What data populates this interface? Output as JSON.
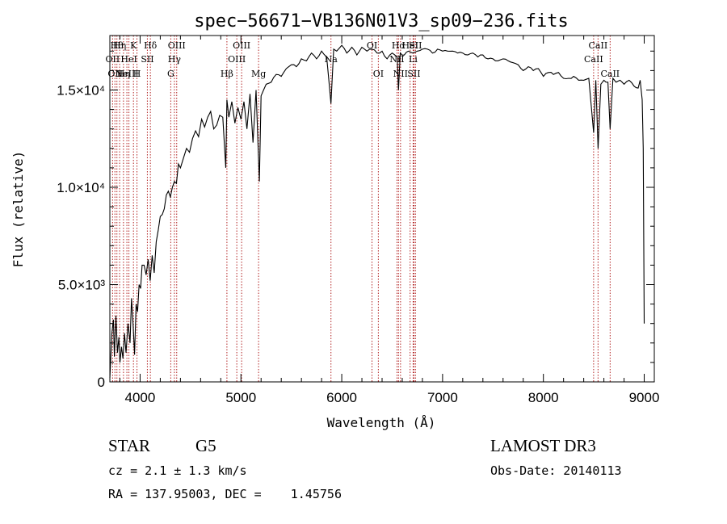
{
  "chart_data": {
    "type": "line",
    "title": "spec−56671−VB136N01V3_sp09−236.fits",
    "xlabel": "Wavelength (Å)",
    "ylabel": "Flux (relative)",
    "xlim": [
      3700,
      9100
    ],
    "ylim": [
      0,
      17800
    ],
    "x_ticks": [
      {
        "value": 4000,
        "label": "4000"
      },
      {
        "value": 5000,
        "label": "5000"
      },
      {
        "value": 6000,
        "label": "6000"
      },
      {
        "value": 7000,
        "label": "7000"
      },
      {
        "value": 8000,
        "label": "8000"
      },
      {
        "value": 9000,
        "label": "9000"
      }
    ],
    "y_ticks": [
      {
        "value": 0,
        "label": "0"
      },
      {
        "value": 5000,
        "label": "5.0×10³"
      },
      {
        "value": 10000,
        "label": "1.0×10⁴"
      },
      {
        "value": 15000,
        "label": "1.5×10⁴"
      }
    ],
    "series": [
      {
        "name": "spectrum",
        "color": "#000000",
        "x": [
          3700,
          3720,
          3735,
          3745,
          3760,
          3775,
          3790,
          3800,
          3815,
          3830,
          3845,
          3860,
          3880,
          3900,
          3915,
          3930,
          3945,
          3960,
          3975,
          3990,
          4005,
          4020,
          4040,
          4060,
          4080,
          4100,
          4120,
          4140,
          4160,
          4180,
          4200,
          4220,
          4240,
          4260,
          4280,
          4300,
          4320,
          4340,
          4360,
          4380,
          4400,
          4430,
          4460,
          4490,
          4520,
          4550,
          4580,
          4610,
          4640,
          4670,
          4700,
          4730,
          4760,
          4790,
          4820,
          4850,
          4861,
          4880,
          4910,
          4940,
          4970,
          5000,
          5030,
          5060,
          5090,
          5120,
          5150,
          5183,
          5200,
          5250,
          5300,
          5350,
          5400,
          5450,
          5500,
          5550,
          5600,
          5650,
          5700,
          5750,
          5800,
          5850,
          5893,
          5920,
          5950,
          6000,
          6050,
          6100,
          6150,
          6200,
          6250,
          6300,
          6350,
          6400,
          6450,
          6500,
          6550,
          6563,
          6580,
          6620,
          6660,
          6700,
          6750,
          6800,
          6850,
          6900,
          6950,
          7000,
          7050,
          7100,
          7150,
          7200,
          7250,
          7300,
          7350,
          7400,
          7450,
          7500,
          7550,
          7600,
          7650,
          7700,
          7750,
          7800,
          7850,
          7900,
          7950,
          8000,
          8050,
          8100,
          8150,
          8200,
          8250,
          8300,
          8350,
          8400,
          8450,
          8498,
          8520,
          8542,
          8570,
          8600,
          8640,
          8662,
          8690,
          8720,
          8760,
          8800,
          8850,
          8900,
          8940,
          8960,
          8980,
          8990,
          9000
        ],
        "values": [
          200,
          2500,
          3200,
          1300,
          3400,
          1500,
          2300,
          1000,
          1800,
          1200,
          2500,
          1500,
          3000,
          2000,
          4300,
          3000,
          1400,
          4000,
          3600,
          5000,
          4800,
          6000,
          6000,
          5500,
          6300,
          5200,
          6500,
          5600,
          7200,
          7800,
          8500,
          8600,
          8900,
          9600,
          9800,
          9500,
          10000,
          10300,
          10200,
          11200,
          11000,
          11500,
          12000,
          11800,
          12500,
          12900,
          12600,
          13500,
          13100,
          13600,
          13900,
          13000,
          13200,
          13700,
          13600,
          11000,
          14500,
          13600,
          14400,
          13300,
          14100,
          13500,
          14400,
          13000,
          14800,
          12300,
          15000,
          10300,
          14700,
          15300,
          15400,
          15800,
          15700,
          16100,
          16300,
          16200,
          16600,
          16500,
          16900,
          16600,
          17000,
          16700,
          14300,
          17100,
          17000,
          17300,
          16900,
          17200,
          16800,
          17200,
          17000,
          17100,
          16900,
          17000,
          16600,
          16900,
          16700,
          15000,
          16900,
          16800,
          17000,
          16900,
          17000,
          17100,
          17100,
          16900,
          17100,
          17000,
          17000,
          17000,
          16900,
          16900,
          16800,
          16900,
          16700,
          16800,
          16600,
          16600,
          16500,
          16600,
          16500,
          16400,
          16300,
          16000,
          16200,
          16000,
          16100,
          15700,
          15900,
          15800,
          15900,
          15600,
          15600,
          15700,
          15500,
          15500,
          15600,
          12800,
          15500,
          12000,
          15300,
          15500,
          15400,
          13000,
          15600,
          15400,
          15500,
          15300,
          15500,
          15200,
          15100,
          15500,
          14500,
          12000,
          3000
        ]
      }
    ],
    "spectral_lines": [
      {
        "x": 3727,
        "label": "OII",
        "row": 1
      },
      {
        "x": 3750,
        "label": "OII",
        "row": 2
      },
      {
        "x": 3770,
        "label": "Hθ",
        "row": 0
      },
      {
        "x": 3797,
        "label": "Hη",
        "row": 0
      },
      {
        "x": 3835,
        "label": "Hη",
        "row": 2
      },
      {
        "x": 3869,
        "label": "NeIII",
        "row": 2
      },
      {
        "x": 3889,
        "label": "HeI",
        "row": 1
      },
      {
        "x": 3934,
        "label": "K",
        "row": 0
      },
      {
        "x": 3969,
        "label": "H",
        "row": 2
      },
      {
        "x": 4072,
        "label": "SII",
        "row": 1
      },
      {
        "x": 4102,
        "label": "Hδ",
        "row": 0
      },
      {
        "x": 4304,
        "label": "G",
        "row": 2
      },
      {
        "x": 4340,
        "label": "Hγ",
        "row": 1
      },
      {
        "x": 4363,
        "label": "OIII",
        "row": 0
      },
      {
        "x": 4861,
        "label": "Hβ",
        "row": 2
      },
      {
        "x": 4959,
        "label": "OIII",
        "row": 1
      },
      {
        "x": 5007,
        "label": "OIII",
        "row": 0
      },
      {
        "x": 5175,
        "label": "Mg",
        "row": 2
      },
      {
        "x": 5893,
        "label": "Na",
        "row": 1
      },
      {
        "x": 6300,
        "label": "OI",
        "row": 0
      },
      {
        "x": 6363,
        "label": "OI",
        "row": 2
      },
      {
        "x": 6548,
        "label": "NII",
        "row": 1
      },
      {
        "x": 6563,
        "label": "Hα",
        "row": 0
      },
      {
        "x": 6583,
        "label": "NII",
        "row": 2
      },
      {
        "x": 6678,
        "label": "HeI",
        "row": 0
      },
      {
        "x": 6708,
        "label": "Li",
        "row": 1
      },
      {
        "x": 6716,
        "label": "SII",
        "row": 2
      },
      {
        "x": 6731,
        "label": "SII",
        "row": 0
      },
      {
        "x": 8498,
        "label": "CaII",
        "row": 1
      },
      {
        "x": 8542,
        "label": "CaII",
        "row": 0
      },
      {
        "x": 8662,
        "label": "CaII",
        "row": 2
      }
    ]
  },
  "info": {
    "object_class": "STAR",
    "subclass": "G5",
    "survey": "LAMOST DR3",
    "redshift": "cz = 2.1 ± 1.3 km/s",
    "obs_date": "Obs-Date: 20140113",
    "coords": "RA = 137.95003, DEC =    1.45756"
  }
}
